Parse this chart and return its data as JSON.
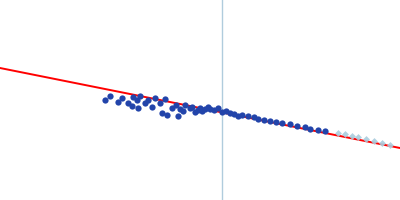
{
  "background_color": "#ffffff",
  "line_color": "#ff0000",
  "line_lw": 1.4,
  "vline_color": "#b0ccdd",
  "vline_lw": 1.0,
  "blue_color": "#2244aa",
  "grey_color": "#aaccdd",
  "blue_ms": 4.5,
  "grey_ms": 3.5,
  "figsize": [
    4.0,
    2.0
  ],
  "dpi": 100,
  "xlim": [
    0,
    400
  ],
  "ylim": [
    0,
    200
  ],
  "vline_x": 222,
  "line_x0": 0,
  "line_x1": 400,
  "line_y0": 68,
  "line_y1": 148,
  "blue_points": [
    [
      105,
      100
    ],
    [
      110,
      96
    ],
    [
      118,
      102
    ],
    [
      122,
      98
    ],
    [
      128,
      103
    ],
    [
      133,
      97
    ],
    [
      137,
      100
    ],
    [
      140,
      96
    ],
    [
      132,
      106
    ],
    [
      138,
      108
    ],
    [
      145,
      103
    ],
    [
      148,
      100
    ],
    [
      152,
      107
    ],
    [
      155,
      98
    ],
    [
      160,
      103
    ],
    [
      165,
      99
    ],
    [
      162,
      113
    ],
    [
      167,
      115
    ],
    [
      172,
      108
    ],
    [
      176,
      105
    ],
    [
      180,
      109
    ],
    [
      183,
      111
    ],
    [
      185,
      105
    ],
    [
      178,
      116
    ],
    [
      190,
      108
    ],
    [
      192,
      107
    ],
    [
      195,
      112
    ],
    [
      198,
      110
    ],
    [
      200,
      108
    ],
    [
      202,
      111
    ],
    [
      205,
      109
    ],
    [
      208,
      107
    ],
    [
      210,
      109
    ],
    [
      214,
      110
    ],
    [
      218,
      108
    ],
    [
      222,
      112
    ],
    [
      226,
      111
    ],
    [
      230,
      113
    ],
    [
      234,
      114
    ],
    [
      238,
      116
    ],
    [
      242,
      115
    ],
    [
      248,
      116
    ],
    [
      254,
      117
    ],
    [
      258,
      119
    ],
    [
      264,
      120
    ],
    [
      270,
      121
    ],
    [
      276,
      122
    ],
    [
      282,
      123
    ],
    [
      290,
      124
    ],
    [
      297,
      126
    ],
    [
      305,
      127
    ],
    [
      310,
      129
    ],
    [
      318,
      130
    ],
    [
      325,
      131
    ]
  ],
  "grey_points": [
    [
      338,
      133
    ],
    [
      345,
      134
    ],
    [
      352,
      136
    ],
    [
      358,
      137
    ],
    [
      366,
      139
    ],
    [
      374,
      141
    ],
    [
      382,
      143
    ],
    [
      390,
      145
    ]
  ]
}
